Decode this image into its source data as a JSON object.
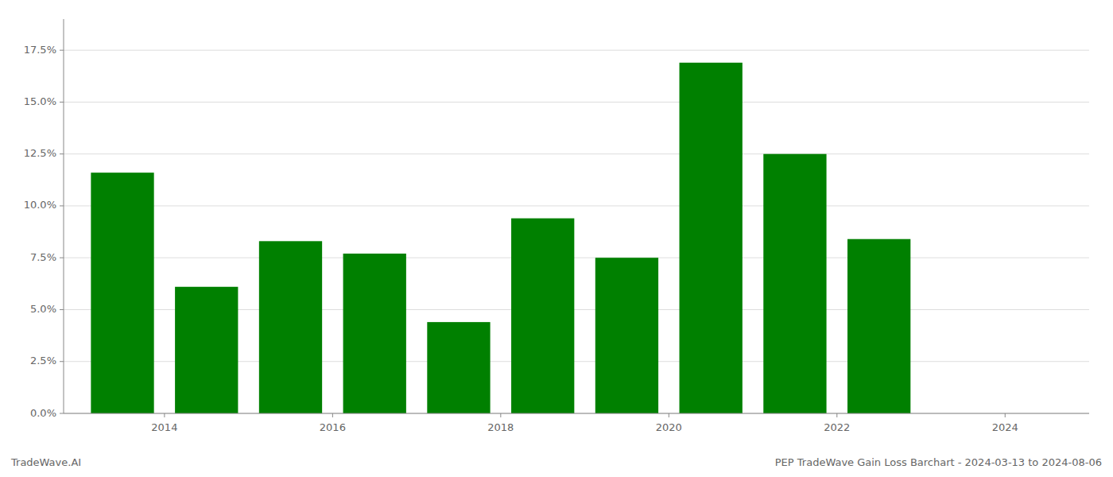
{
  "chart_data": {
    "type": "bar",
    "title": "PEP TradeWave Gain Loss Barchart - 2024-03-13 to 2024-08-06",
    "annotations": [
      "TradeWave.AI"
    ],
    "x": [
      2013,
      2014,
      2015,
      2016,
      2017,
      2018,
      2019,
      2020,
      2021,
      2022,
      2023
    ],
    "values": [
      0.116,
      0.061,
      0.083,
      0.077,
      0.044,
      0.094,
      0.075,
      0.169,
      0.125,
      0.084,
      0.0
    ],
    "color": "#008000",
    "grid": true,
    "xlim": [
      2012.3,
      2024.5
    ],
    "xticks": [
      {
        "value": 2013.5,
        "label": "2014"
      },
      {
        "value": 2015.5,
        "label": "2016"
      },
      {
        "value": 2017.5,
        "label": "2018"
      },
      {
        "value": 2019.5,
        "label": "2020"
      },
      {
        "value": 2021.5,
        "label": "2022"
      },
      {
        "value": 2023.5,
        "label": "2024"
      }
    ],
    "ylim": [
      0,
      0.19
    ],
    "yticks": [
      {
        "value": 0.0,
        "label": "0.0%"
      },
      {
        "value": 0.025,
        "label": "2.5%"
      },
      {
        "value": 0.05,
        "label": "5.0%"
      },
      {
        "value": 0.075,
        "label": "7.5%"
      },
      {
        "value": 0.1,
        "label": "10.0%"
      },
      {
        "value": 0.125,
        "label": "12.5%"
      },
      {
        "value": 0.15,
        "label": "15.0%"
      },
      {
        "value": 0.175,
        "label": "17.5%"
      }
    ]
  }
}
